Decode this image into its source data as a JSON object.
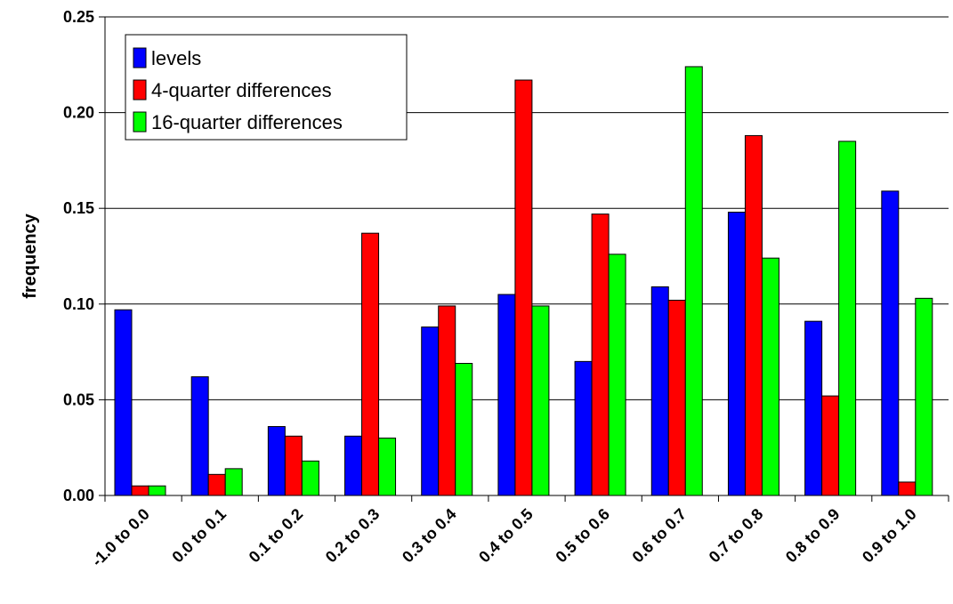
{
  "chart_data": {
    "type": "bar",
    "title": "",
    "xlabel": "",
    "ylabel": "frequency",
    "ylim": [
      0,
      0.25
    ],
    "yticks": [
      "0.00",
      "0.05",
      "0.10",
      "0.15",
      "0.20",
      "0.25"
    ],
    "grid": true,
    "legend_position": "top-left",
    "categories": [
      "-1.0 to 0.0",
      "0.0 to 0.1",
      "0.1 to 0.2",
      "0.2 to 0.3",
      "0.3 to 0.4",
      "0.4 to 0.5",
      "0.5 to 0.6",
      "0.6 to 0.7",
      "0.7 to 0.8",
      "0.8 to 0.9",
      "0.9 to 1.0"
    ],
    "series": [
      {
        "name": "levels",
        "color": "#0000ff",
        "values": [
          0.097,
          0.062,
          0.036,
          0.031,
          0.088,
          0.105,
          0.07,
          0.109,
          0.148,
          0.091,
          0.159
        ]
      },
      {
        "name": "4-quarter differences",
        "color": "#ff0000",
        "values": [
          0.005,
          0.011,
          0.031,
          0.137,
          0.099,
          0.217,
          0.147,
          0.102,
          0.188,
          0.052,
          0.007
        ]
      },
      {
        "name": "16-quarter differences",
        "color": "#00ff00",
        "values": [
          0.005,
          0.014,
          0.018,
          0.03,
          0.069,
          0.099,
          0.126,
          0.224,
          0.124,
          0.185,
          0.103
        ]
      }
    ]
  }
}
